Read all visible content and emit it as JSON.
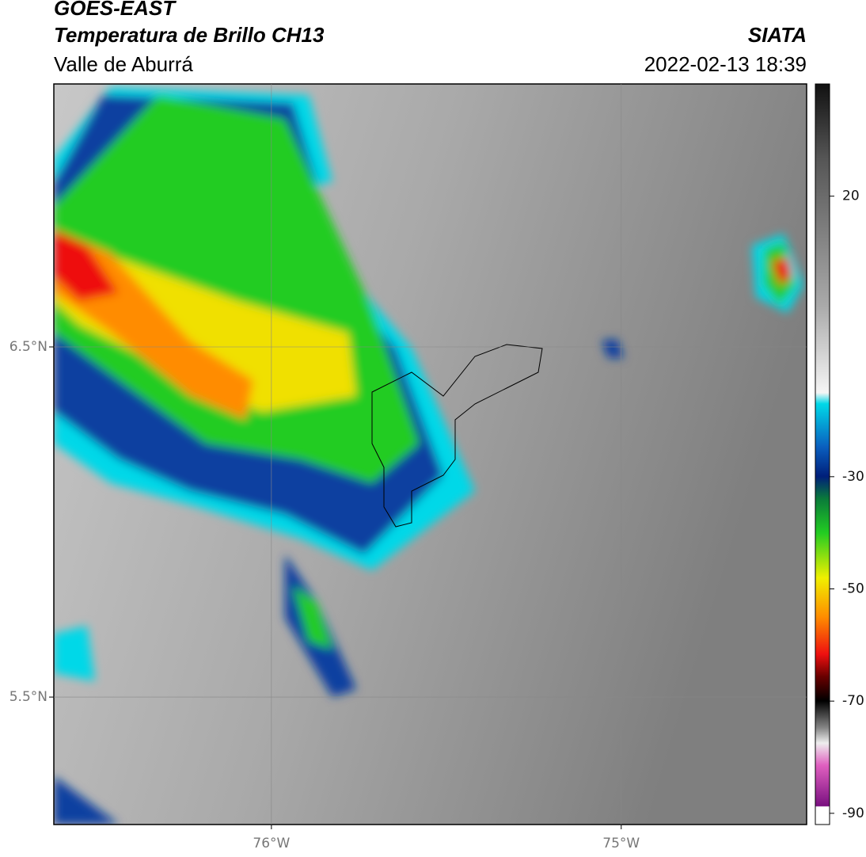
{
  "header": {
    "title": "GOES-EAST",
    "subtitle": "Temperatura de Brillo CH13",
    "source": "SIATA",
    "region": "Valle de Aburrá",
    "datetime": "2022-02-13 18:39"
  },
  "map": {
    "xlim": [
      -76.622,
      -74.47
    ],
    "ylim": [
      5.136,
      7.251
    ],
    "xticks": [
      {
        "value": -76,
        "label": "76°W"
      },
      {
        "value": -75,
        "label": "75°W"
      }
    ],
    "yticks": [
      {
        "value": 5.5,
        "label": "5.5°N"
      },
      {
        "value": 6.5,
        "label": "6.5°N"
      }
    ],
    "grid": true
  },
  "colorbar": {
    "lim": [
      -92,
      40
    ],
    "ticks": [
      -90,
      -70,
      -50,
      -30,
      20
    ]
  }
}
